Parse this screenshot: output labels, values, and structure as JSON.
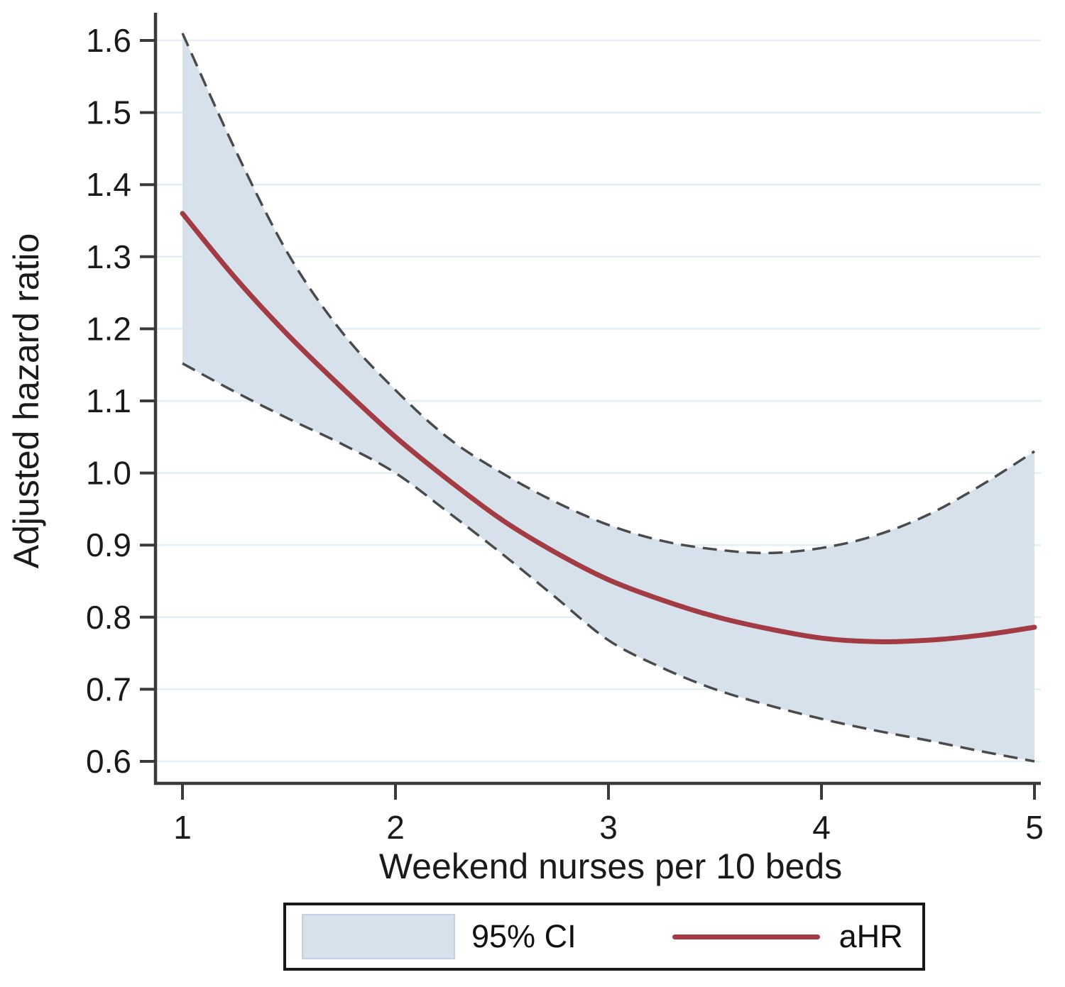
{
  "chart_data": {
    "type": "line",
    "title": "",
    "xlabel": "Weekend nurses per 10 beds",
    "ylabel": "Adjusted hazard ratio",
    "xlim": [
      1,
      5
    ],
    "ylim": [
      0.6,
      1.6
    ],
    "xticks": [
      1,
      2,
      3,
      4,
      5
    ],
    "xtick_labels": [
      "1",
      "2",
      "3",
      "4",
      "5"
    ],
    "yticks": [
      0.6,
      0.7,
      0.8,
      0.9,
      1.0,
      1.1,
      1.2,
      1.3,
      1.4,
      1.5,
      1.6
    ],
    "ytick_labels": [
      "0.6",
      "0.7",
      "0.8",
      "0.9",
      "1.0",
      "1.1",
      "1.2",
      "1.3",
      "1.4",
      "1.5",
      "1.6"
    ],
    "grid": "horizontal",
    "legend_position": "bottom",
    "x": [
      1,
      1.25,
      1.5,
      1.75,
      2,
      2.25,
      2.5,
      2.75,
      3,
      3.25,
      3.5,
      3.75,
      4,
      4.25,
      4.5,
      4.75,
      5
    ],
    "series": [
      {
        "name": "aHR",
        "style": "solid",
        "color": "#a23b44",
        "width": 7,
        "values": [
          1.36,
          1.27,
          1.19,
          1.118,
          1.05,
          0.99,
          0.935,
          0.89,
          0.852,
          0.824,
          0.801,
          0.784,
          0.771,
          0.766,
          0.768,
          0.775,
          0.786
        ]
      },
      {
        "name": "95% CI upper",
        "style": "dashed",
        "color": "#4a4a4a",
        "width": 3.5,
        "values": [
          1.61,
          1.447,
          1.302,
          1.195,
          1.115,
          1.048,
          1.0,
          0.96,
          0.928,
          0.906,
          0.894,
          0.889,
          0.896,
          0.913,
          0.942,
          0.983,
          1.03
        ]
      },
      {
        "name": "95% CI lower",
        "style": "dashed",
        "color": "#4a4a4a",
        "width": 3.5,
        "values": [
          1.152,
          1.112,
          1.075,
          1.04,
          1.0,
          0.945,
          0.888,
          0.828,
          0.768,
          0.73,
          0.7,
          0.678,
          0.659,
          0.643,
          0.629,
          0.614,
          0.6
        ]
      }
    ],
    "band": {
      "label": "95% CI",
      "fill": "#d7e1ec",
      "upper_series": 1,
      "lower_series": 2
    },
    "legend": {
      "entries": [
        {
          "swatch": "area",
          "label": "95% CI"
        },
        {
          "swatch": "line",
          "label": "aHR"
        }
      ]
    }
  },
  "colors": {
    "band_fill": "#d7e1ec",
    "ci_dash": "#4a4a4a",
    "ahr_line": "#a23b44",
    "gridline": "#e2eff5",
    "axis": "#3a3a3a",
    "text": "#1a1a1a",
    "legend_border": "#181818",
    "legend_swatch_border": "#c2d1e2"
  }
}
